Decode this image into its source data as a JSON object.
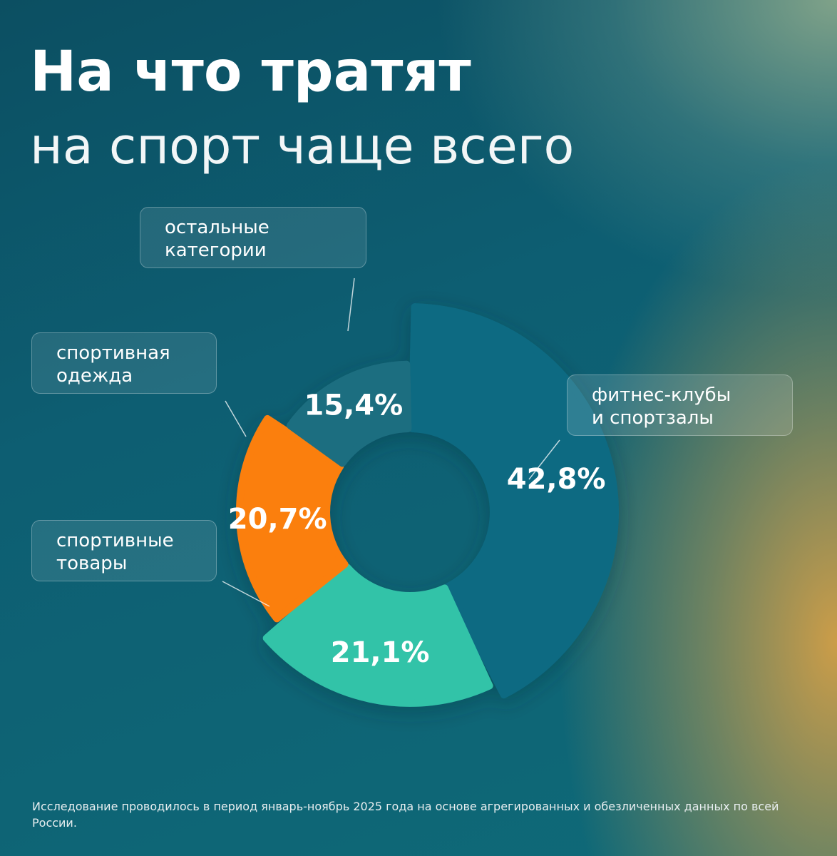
{
  "title": {
    "line1": "На что тратят",
    "line2": "на спорт чаще всего"
  },
  "chart_data": {
    "type": "pie",
    "style": "donut",
    "slices": [
      {
        "key": "fitness",
        "label": "фитнес-клубы\nи спортзалы",
        "value": 42.8,
        "value_label": "42,8%",
        "color": "#0c6a82"
      },
      {
        "key": "goods",
        "label": "спортивные\nтовары",
        "value": 21.1,
        "value_label": "21,1%",
        "color": "#33c3a8"
      },
      {
        "key": "clothes",
        "label": "спортивная\nодежда",
        "value": 20.7,
        "value_label": "20,7%",
        "color": "#fb7f08"
      },
      {
        "key": "other",
        "label": "остальные\nкатегории",
        "value": 15.4,
        "value_label": "15,4%",
        "color": "#1f6e80"
      }
    ]
  },
  "footnote": "Исследование проводилось в период январь-ноябрь 2025 года на основе агрегированных и обезличенных данных по всей России."
}
